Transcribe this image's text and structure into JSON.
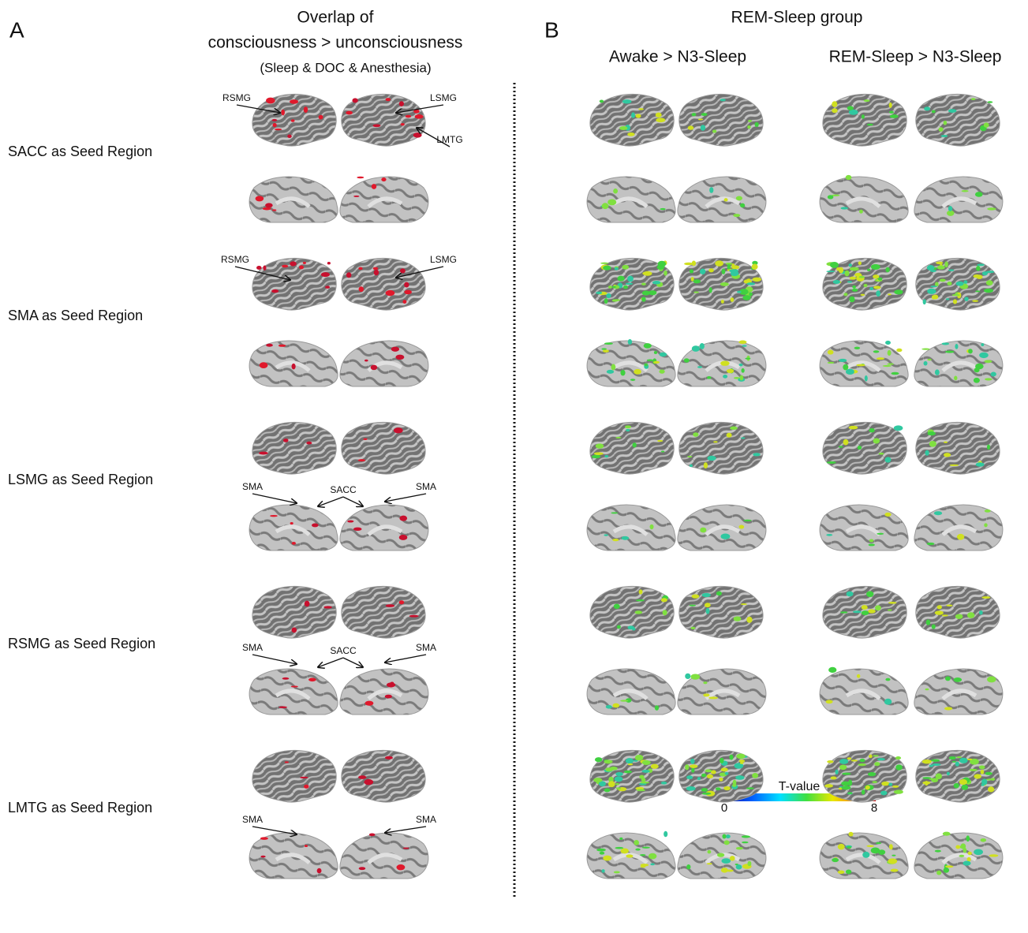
{
  "panel_a": {
    "letter": "A",
    "title_lines": [
      "Overlap of",
      "consciousness > unconsciousness",
      "(Sleep & DOC & Anesthesia)"
    ],
    "rows": [
      {
        "label": "SACC as Seed Region",
        "annotations": [
          "RSMG",
          "LSMG",
          "LMTG"
        ]
      },
      {
        "label": "SMA as Seed Region",
        "annotations": [
          "RSMG",
          "LSMG"
        ]
      },
      {
        "label": "LSMG as Seed Region",
        "annotations": [
          "SMA",
          "SACC",
          "SMA"
        ]
      },
      {
        "label": "RSMG as Seed Region",
        "annotations": [
          "SMA",
          "SACC",
          "SMA"
        ]
      },
      {
        "label": "LMTG as Seed Region",
        "annotations": [
          "SMA",
          "SMA"
        ]
      }
    ]
  },
  "panel_b": {
    "letter": "B",
    "title": "REM-Sleep group",
    "columns": [
      "Awake > N3-Sleep",
      "REM-Sleep > N3-Sleep"
    ]
  },
  "colorbar": {
    "label": "T-value",
    "min": "0",
    "max": "8"
  }
}
